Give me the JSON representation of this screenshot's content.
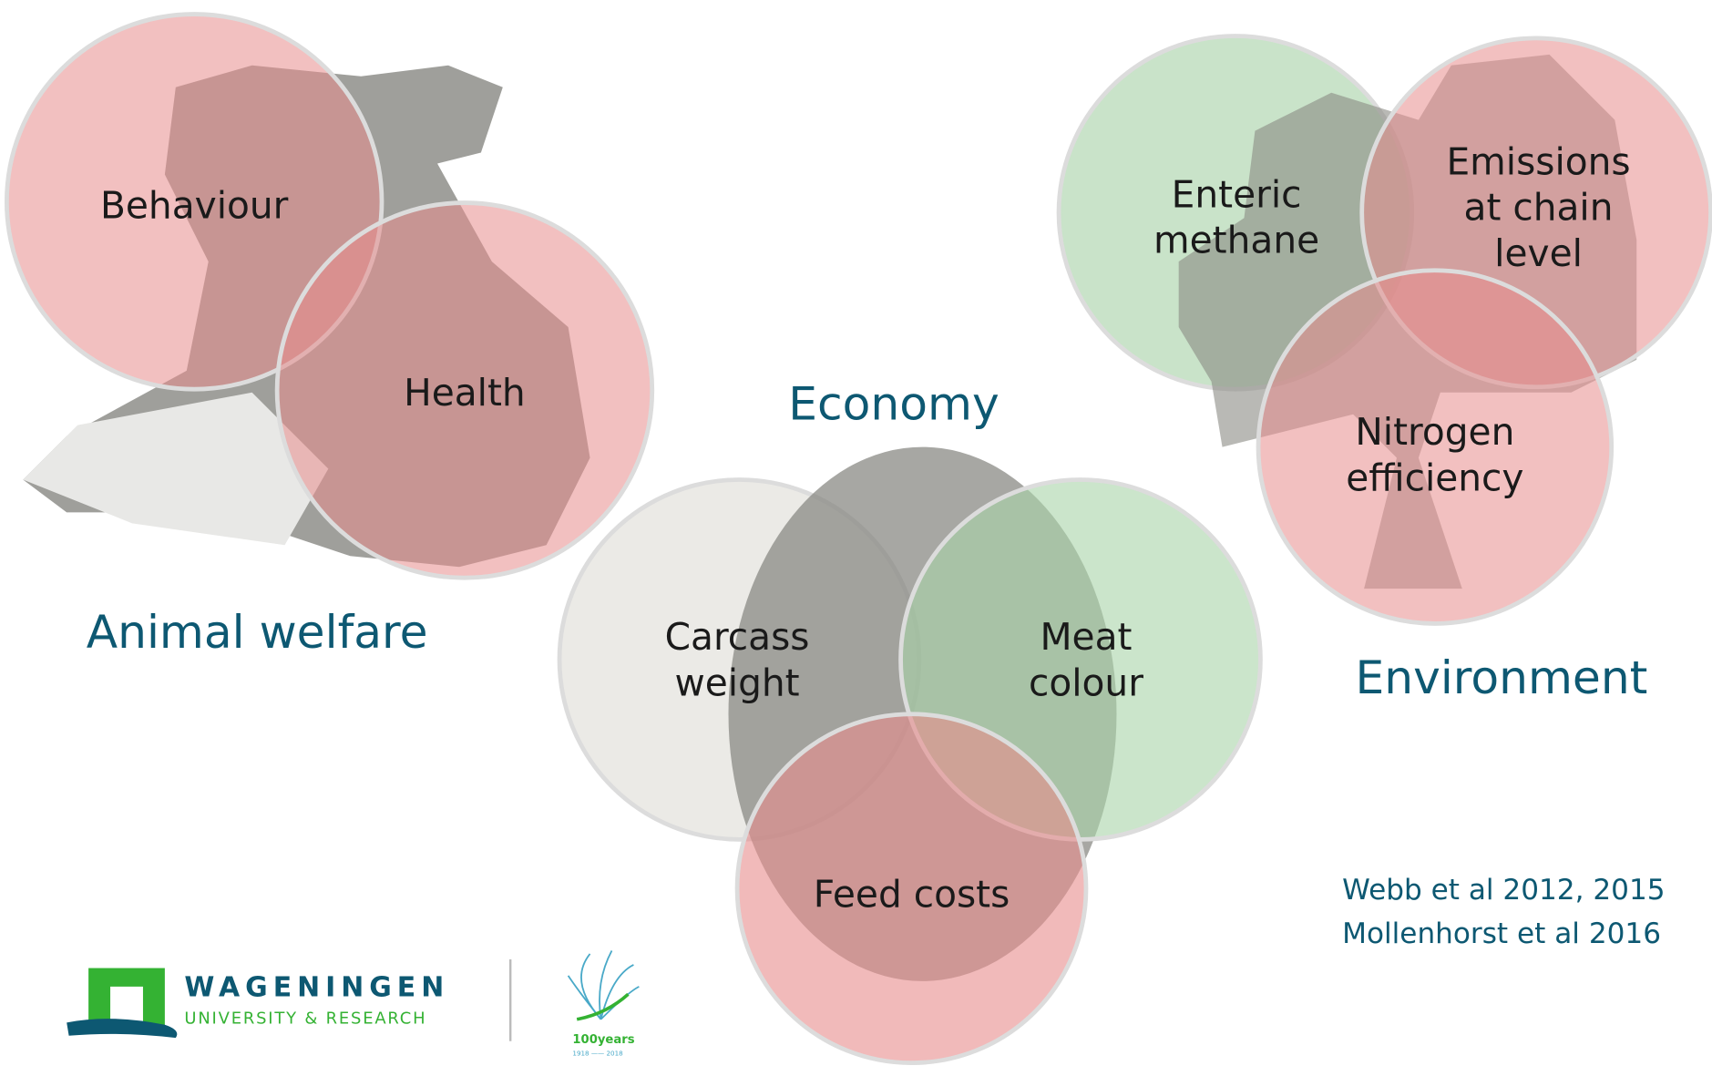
{
  "groups": [
    {
      "title": "Animal welfare",
      "circles": [
        [
          "Behaviour"
        ],
        [
          "Health"
        ]
      ]
    },
    {
      "title": "Economy",
      "circles": [
        [
          "Carcass",
          "weight"
        ],
        [
          "Meat",
          "colour"
        ],
        [
          "Feed costs"
        ]
      ]
    },
    {
      "title": "Environment",
      "circles": [
        [
          "Enteric",
          "methane"
        ],
        [
          "Emissions",
          "at chain",
          "level"
        ],
        [
          "Nitrogen",
          "efficiency"
        ]
      ]
    }
  ],
  "references": [
    "Webb et al 2012, 2015",
    "Mollenhorst et al 2016"
  ],
  "logo": {
    "name": "WAGENINGEN",
    "subtitle": "UNIVERSITY & RESEARCH",
    "anniversary": "100years",
    "years": "1918 —— 2018"
  }
}
